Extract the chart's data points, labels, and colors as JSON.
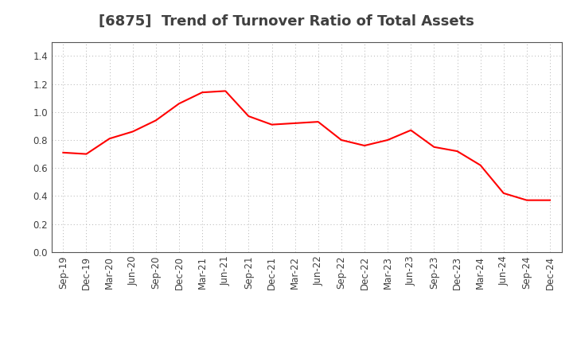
{
  "title": "[6875]  Trend of Turnover Ratio of Total Assets",
  "x_labels": [
    "Sep-19",
    "Dec-19",
    "Mar-20",
    "Jun-20",
    "Sep-20",
    "Dec-20",
    "Mar-21",
    "Jun-21",
    "Sep-21",
    "Dec-21",
    "Mar-22",
    "Jun-22",
    "Sep-22",
    "Dec-22",
    "Mar-23",
    "Jun-23",
    "Sep-23",
    "Dec-23",
    "Mar-24",
    "Jun-24",
    "Sep-24",
    "Dec-24"
  ],
  "y_values": [
    0.71,
    0.7,
    0.81,
    0.86,
    0.94,
    1.06,
    1.14,
    1.15,
    0.97,
    0.91,
    0.92,
    0.93,
    0.8,
    0.76,
    0.8,
    0.87,
    0.75,
    0.72,
    0.62,
    0.42,
    0.37,
    0.37
  ],
  "line_color": "#ff0000",
  "line_width": 1.5,
  "ylim": [
    0.0,
    1.5
  ],
  "yticks": [
    0.0,
    0.2,
    0.4,
    0.6,
    0.8,
    1.0,
    1.2,
    1.4
  ],
  "grid_color": "#b0b0b0",
  "background_color": "#ffffff",
  "title_fontsize": 13,
  "tick_fontsize": 8.5,
  "title_color": "#404040"
}
